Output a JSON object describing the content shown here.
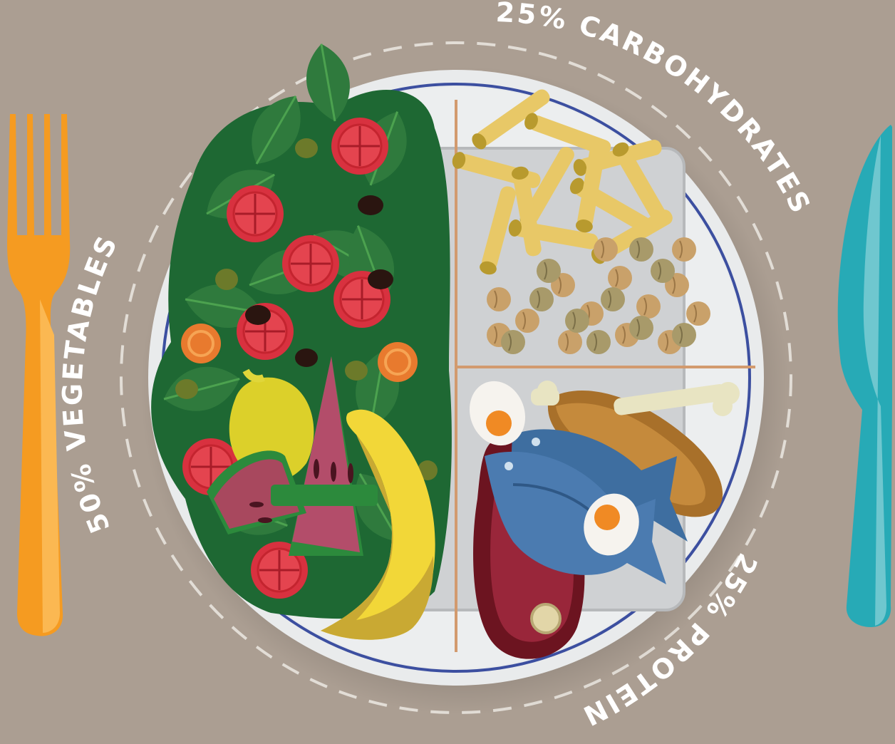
{
  "colors": {
    "background": "#ab9e92",
    "plate": "#e9ebec",
    "plate_rim": "#3c4fa0",
    "divider": "#d29a6e",
    "label_text": "#ffffff",
    "dashed_ring": "#e2ddd6",
    "fork": "#f59b21",
    "knife": "#27aab6"
  },
  "labels": {
    "vegetables": "50% VEGETABLES",
    "carbohydrates": "25% CARBOHYDRATES",
    "protein": "25% PROTEIN"
  },
  "portions": [
    {
      "label_key": "vegetables",
      "percent": 50
    },
    {
      "label_key": "carbohydrates",
      "percent": 25
    },
    {
      "label_key": "protein",
      "percent": 25
    }
  ],
  "icons": [
    "fork-icon",
    "knife-icon",
    "plate-icon",
    "salad-icon",
    "tomato-icon",
    "olive-icon",
    "carrot-icon",
    "lemon-icon",
    "watermelon-icon",
    "banana-icon",
    "pasta-icon",
    "chickpea-icon",
    "lentil-icon",
    "egg-icon",
    "fish-icon",
    "chicken-leg-icon",
    "steak-icon"
  ]
}
